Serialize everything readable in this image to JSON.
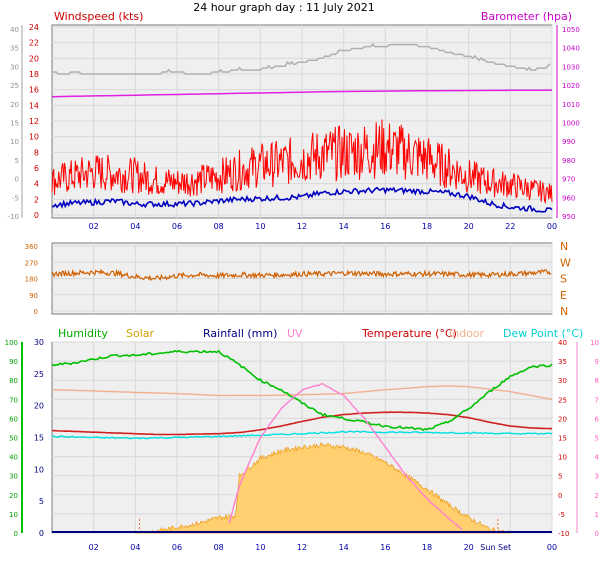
{
  "title": "24 hour graph day : 11 July 2021",
  "chart_data": [
    {
      "id": "wind_baro",
      "type": "line",
      "label_left": "Windspeed (kts)",
      "label_right": "Barometer (hpa)",
      "x_ticks": [
        "02",
        "04",
        "06",
        "08",
        "10",
        "12",
        "14",
        "16",
        "18",
        "20",
        "22",
        "00"
      ],
      "x_range_hours": [
        0,
        24
      ],
      "y_left_ticks": [
        24,
        22,
        20,
        18,
        16,
        14,
        12,
        10,
        8,
        6,
        4,
        2,
        0
      ],
      "y_left_range": [
        0,
        24
      ],
      "y_left_gust_ticks": [
        40,
        35,
        30,
        25,
        20,
        15,
        10,
        5,
        0,
        -5,
        -10
      ],
      "y_left_gust_range": [
        -10,
        40
      ],
      "y_right_ticks": [
        1050,
        1040,
        1030,
        1020,
        1010,
        1000,
        990,
        980,
        970,
        960,
        950
      ],
      "y_right_range": [
        950,
        1050
      ],
      "series": [
        {
          "name": "Barometer",
          "color": "#e020e0",
          "axis": "right",
          "x": [
            0,
            2,
            4,
            6,
            8,
            10,
            12,
            14,
            16,
            18,
            20,
            22,
            24
          ],
          "y": [
            1013.8,
            1014.2,
            1014.6,
            1015.0,
            1015.4,
            1015.8,
            1016.2,
            1016.6,
            1016.8,
            1017.0,
            1017.1,
            1017.2,
            1017.3
          ]
        },
        {
          "name": "Wind direction / grey trace",
          "color": "#b0b0b0",
          "axis": "left",
          "x": [
            0,
            0.5,
            1,
            2,
            4,
            6,
            7,
            8,
            9,
            10,
            11,
            12,
            13,
            14,
            15,
            16,
            17,
            18,
            19,
            20,
            21,
            22,
            23,
            24
          ],
          "y": [
            18.3,
            17.9,
            18.2,
            18.0,
            18.0,
            18.2,
            18.0,
            18.2,
            18.5,
            18.6,
            19.0,
            19.5,
            20.0,
            21.0,
            21.4,
            21.6,
            21.8,
            21.5,
            20.8,
            20.2,
            19.5,
            19.0,
            18.5,
            19.0
          ]
        },
        {
          "name": "Wind gust",
          "color": "#ff0000",
          "axis": "left",
          "x": [
            0,
            1,
            2,
            3,
            4,
            5,
            6,
            7,
            8,
            9,
            10,
            11,
            12,
            13,
            14,
            15,
            16,
            17,
            18,
            19,
            20,
            21,
            22,
            23,
            24
          ],
          "y": [
            4.0,
            4.5,
            5.0,
            4.8,
            4.6,
            4.0,
            3.8,
            4.0,
            4.5,
            5.2,
            5.8,
            6.0,
            6.5,
            7.0,
            7.2,
            7.5,
            7.8,
            7.2,
            6.5,
            5.5,
            4.5,
            3.8,
            3.5,
            3.0,
            2.5
          ]
        },
        {
          "name": "Wind speed",
          "color": "#0000c0",
          "axis": "left",
          "x": [
            0,
            1,
            2,
            3,
            4,
            5,
            6,
            7,
            8,
            9,
            10,
            11,
            12,
            13,
            14,
            15,
            16,
            17,
            18,
            19,
            20,
            21,
            22,
            23,
            24
          ],
          "y": [
            1.3,
            1.5,
            1.6,
            1.8,
            1.4,
            1.4,
            1.4,
            1.5,
            1.8,
            2.0,
            2.1,
            2.2,
            2.3,
            2.8,
            3.0,
            3.1,
            3.2,
            3.1,
            3.0,
            2.8,
            2.4,
            1.5,
            1.0,
            0.8,
            0.5
          ]
        }
      ]
    },
    {
      "id": "direction",
      "type": "line",
      "label_left_ticks": [
        "360",
        "270",
        "180",
        "90",
        "0"
      ],
      "y_range": [
        0,
        360
      ],
      "compass_labels": [
        "N",
        "W",
        "S",
        "E",
        "N"
      ],
      "x_range_hours": [
        0,
        24
      ],
      "series": [
        {
          "name": "Wind direction",
          "color": "#d06000",
          "x": [
            0,
            1,
            2,
            3,
            4,
            5,
            6,
            7,
            8,
            9,
            10,
            11,
            12,
            13,
            14,
            15,
            16,
            17,
            18,
            19,
            20,
            21,
            22,
            23,
            24
          ],
          "y": [
            205,
            210,
            215,
            210,
            190,
            180,
            195,
            200,
            195,
            200,
            198,
            200,
            205,
            205,
            210,
            208,
            205,
            206,
            205,
            205,
            200,
            200,
            205,
            210,
            218
          ]
        }
      ]
    },
    {
      "id": "temp_hum_solar",
      "type": "line",
      "labels": {
        "humidity": "Humidity",
        "solar": "Solar",
        "rainfall": "Rainfall (mm)",
        "uv": "UV",
        "temperature": "Temperature (°C)",
        "indoor": "Indoor",
        "dew_point": "Dew Point (°C)"
      },
      "x_ticks": [
        "02",
        "04",
        "06",
        "08",
        "10",
        "12",
        "14",
        "16",
        "18",
        "20",
        "Sun Set",
        "00"
      ],
      "x_range_hours": [
        0,
        24
      ],
      "y_humidity_ticks": [
        100,
        90,
        80,
        70,
        60,
        50,
        40,
        30,
        20,
        10,
        0
      ],
      "y_humidity_range": [
        0,
        100
      ],
      "y_rain_ticks": [
        30,
        25,
        20,
        15,
        10,
        5,
        0
      ],
      "y_rain_range": [
        0,
        30
      ],
      "y_temp_ticks": [
        40,
        35,
        30,
        25,
        20,
        15,
        10,
        5,
        0,
        -5,
        -10
      ],
      "y_temp_range": [
        -10,
        40
      ],
      "y_uv_ticks": [
        10,
        9,
        8,
        7,
        6,
        5,
        4,
        3,
        2,
        1,
        0
      ],
      "y_uv_range": [
        0,
        10
      ],
      "series": [
        {
          "name": "Humidity",
          "color": "#00c000",
          "axis": "humidity",
          "x": [
            0,
            1,
            2,
            3,
            4,
            5,
            6,
            7,
            8,
            9,
            10,
            11,
            12,
            13,
            14,
            15,
            16,
            17,
            18,
            19,
            20,
            21,
            22,
            23,
            24
          ],
          "y": [
            88,
            89,
            91,
            93,
            93,
            94,
            95,
            95,
            95,
            88,
            80,
            75,
            68,
            62,
            60,
            58,
            56,
            55,
            54,
            58,
            65,
            74,
            82,
            87,
            88
          ]
        },
        {
          "name": "Indoor",
          "color": "#f0b090",
          "axis": "temp",
          "x": [
            0,
            2,
            4,
            6,
            8,
            10,
            12,
            14,
            16,
            18,
            19,
            20,
            22,
            24
          ],
          "y": [
            27.5,
            27.2,
            26.8,
            26.5,
            26.0,
            26.0,
            26.2,
            26.5,
            27.5,
            28.3,
            28.5,
            28.3,
            27.0,
            25.0
          ]
        },
        {
          "name": "Temperature",
          "color": "#d02020",
          "axis": "temp",
          "x": [
            0,
            1,
            2,
            3,
            4,
            5,
            6,
            7,
            8,
            9,
            10,
            11,
            12,
            13,
            14,
            15,
            16,
            17,
            18,
            19,
            20,
            21,
            22,
            23,
            24
          ],
          "y": [
            16.8,
            16.6,
            16.4,
            16.2,
            16.0,
            15.8,
            15.8,
            15.9,
            16.0,
            16.3,
            17.0,
            18.0,
            19.2,
            20.3,
            21.0,
            21.4,
            21.6,
            21.6,
            21.4,
            21.0,
            20.2,
            19.0,
            18.0,
            17.5,
            17.3
          ]
        },
        {
          "name": "Dew Point",
          "color": "#00e0e0",
          "axis": "temp",
          "x": [
            0,
            2,
            4,
            6,
            8,
            10,
            12,
            14,
            16,
            18,
            20,
            22,
            24
          ],
          "y": [
            15.3,
            15.0,
            14.8,
            15.0,
            15.3,
            15.6,
            16.0,
            16.5,
            16.4,
            16.3,
            16.2,
            16.0,
            16.0
          ]
        },
        {
          "name": "UV",
          "color": "#ff80d0",
          "axis": "uv",
          "x": [
            8.5,
            9,
            10,
            11,
            12,
            13,
            14,
            15,
            16,
            17,
            18,
            19,
            19.7
          ],
          "y": [
            0.5,
            2.5,
            5.0,
            6.5,
            7.5,
            7.8,
            7.2,
            6.0,
            4.5,
            3.0,
            1.8,
            0.8,
            0.2
          ]
        },
        {
          "name": "Solar",
          "color": "#f0a020",
          "axis": "humidity",
          "x": [
            4,
            5,
            6,
            7,
            8,
            8.8,
            9,
            10,
            11,
            12,
            13,
            14,
            15,
            16,
            17,
            18,
            19,
            20,
            21,
            22
          ],
          "y": [
            0,
            1,
            3,
            5,
            8,
            9,
            30,
            39,
            43,
            45,
            46,
            45,
            42,
            37,
            30,
            23,
            15,
            8,
            2,
            0
          ]
        },
        {
          "name": "Rainfall",
          "color": "#000080",
          "axis": "rain",
          "x": [
            0,
            24
          ],
          "y": [
            0,
            0
          ]
        }
      ],
      "annotations": [
        "Sun Set"
      ]
    }
  ]
}
